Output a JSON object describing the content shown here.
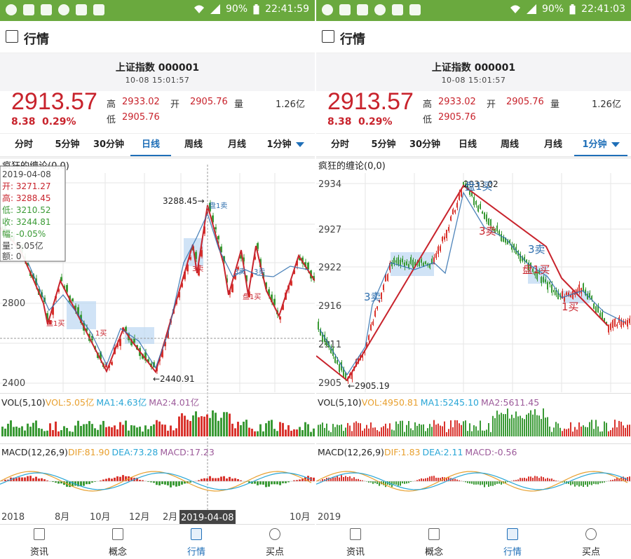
{
  "left": {
    "status": {
      "battery": "90%",
      "time": "22:41:59"
    },
    "title": "行情",
    "stock": {
      "name": "上证指数 000001",
      "time": "10-08 15:01:57"
    },
    "quote": {
      "price": "2913.57",
      "change": "8.38",
      "pct": "0.29%",
      "high_label": "高",
      "high": "2933.02",
      "open_label": "开",
      "open": "2905.76",
      "vol_label": "量",
      "vol": "1.26亿",
      "low_label": "低",
      "low": "2905.76"
    },
    "tabs": [
      "分时",
      "5分钟",
      "30分钟",
      "日线",
      "周线",
      "月线",
      "1分钟"
    ],
    "active_tab": "日线",
    "chart": {
      "indicator_label": "疯狂的缠论(0,0)",
      "y_ticks": [
        "2800",
        "2400"
      ],
      "x_ticks": [
        "2018",
        "8月",
        "10月",
        "12月",
        "2月",
        "10月"
      ],
      "crosshair_date": "2019-04-08",
      "tooltip": {
        "date": "2019-04-08",
        "open": "开: 3271.27",
        "high": "高: 3288.45",
        "low": "低: 3210.52",
        "close": "收: 3244.81",
        "amp": "幅: -0.05%",
        "vol": "量: 5.05亿",
        "amount": "额: 0"
      },
      "annotations": [
        "3288.45→",
        "←2440.91",
        "盘1卖",
        "盘1买",
        "1买",
        "3卖",
        "3卖",
        "3卖",
        "盘1买"
      ],
      "vol_label": {
        "prefix": "VOL(5,10)",
        "vol": "VOL:5.05亿",
        "ma1": "MA1:4.63亿",
        "ma2": "MA2:4.01亿"
      },
      "macd_label": {
        "prefix": "MACD(12,26,9)",
        "dif": "DIF:81.90",
        "dea": "DEA:73.28",
        "macd": "MACD:17.23"
      }
    },
    "nav": [
      "资讯",
      "概念",
      "行情",
      "买点"
    ],
    "active_nav": "行情"
  },
  "right": {
    "status": {
      "battery": "90%",
      "time": "22:41:03"
    },
    "title": "行情",
    "stock": {
      "name": "上证指数 000001",
      "time": "10-08 15:01:57"
    },
    "quote": {
      "price": "2913.57",
      "change": "8.38",
      "pct": "0.29%",
      "high_label": "高",
      "high": "2933.02",
      "open_label": "开",
      "open": "2905.76",
      "vol_label": "量",
      "vol": "1.26亿",
      "low_label": "低",
      "low": "2905.76"
    },
    "tabs": [
      "分时",
      "5分钟",
      "30分钟",
      "日线",
      "周线",
      "月线",
      "1分钟"
    ],
    "active_tab": "1分钟",
    "chart": {
      "indicator_label": "疯狂的缠论(0,0)",
      "y_ticks": [
        "2934",
        "2927",
        "2922",
        "2916",
        "2911",
        "2905"
      ],
      "x_ticks": [
        "2019"
      ],
      "annotations": [
        "2933.02",
        "盘1买",
        "3卖",
        "3卖",
        "盘1买",
        "1买",
        "3卖",
        "←2905.19"
      ],
      "vol_label": {
        "prefix": "VOL(5,10)",
        "vol": "VOL:4950.81",
        "ma1": "MA1:5245.10",
        "ma2": "MA2:5611.45"
      },
      "macd_label": {
        "prefix": "MACD(12,26,9)",
        "dif": "DIF:1.83",
        "dea": "DEA:2.11",
        "macd": "MACD:-0.56"
      }
    },
    "nav": [
      "资讯",
      "概念",
      "行情",
      "买点"
    ],
    "active_nav": "行情"
  },
  "colors": {
    "status_green": "#6aa93e",
    "price_red": "#c8232c",
    "accent_blue": "#1f6fb8",
    "candle_up": "#d9332d",
    "candle_down": "#3a9a35",
    "dif_orange": "#e8a02f",
    "dea_cyan": "#29a6d6",
    "ma2_purple": "#9c5a9a"
  }
}
